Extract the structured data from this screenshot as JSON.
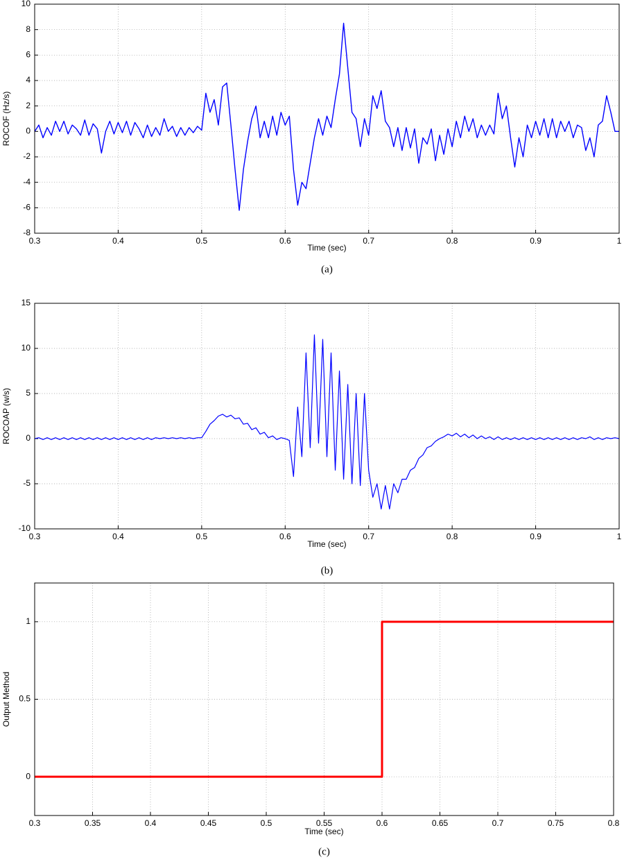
{
  "chart_data": [
    {
      "type": "line",
      "x_label": "Time (sec)",
      "y_label": "ROCOF (Hz/s)",
      "caption": "(a)",
      "x": [
        0.3,
        0.305,
        0.31,
        0.315,
        0.32,
        0.325,
        0.33,
        0.335,
        0.34,
        0.345,
        0.35,
        0.355,
        0.36,
        0.365,
        0.37,
        0.375,
        0.38,
        0.385,
        0.39,
        0.395,
        0.4,
        0.405,
        0.41,
        0.415,
        0.42,
        0.425,
        0.43,
        0.435,
        0.44,
        0.445,
        0.45,
        0.455,
        0.46,
        0.465,
        0.47,
        0.475,
        0.48,
        0.485,
        0.49,
        0.495,
        0.5,
        0.505,
        0.51,
        0.515,
        0.52,
        0.525,
        0.53,
        0.535,
        0.54,
        0.545,
        0.55,
        0.555,
        0.56,
        0.565,
        0.57,
        0.575,
        0.58,
        0.585,
        0.59,
        0.595,
        0.6,
        0.605,
        0.61,
        0.615,
        0.62,
        0.625,
        0.63,
        0.635,
        0.64,
        0.645,
        0.65,
        0.655,
        0.66,
        0.665,
        0.67,
        0.675,
        0.68,
        0.685,
        0.69,
        0.695,
        0.7,
        0.705,
        0.71,
        0.715,
        0.72,
        0.725,
        0.73,
        0.735,
        0.74,
        0.745,
        0.75,
        0.755,
        0.76,
        0.765,
        0.77,
        0.775,
        0.78,
        0.785,
        0.79,
        0.795,
        0.8,
        0.805,
        0.81,
        0.815,
        0.82,
        0.825,
        0.83,
        0.835,
        0.84,
        0.845,
        0.85,
        0.855,
        0.86,
        0.865,
        0.87,
        0.875,
        0.88,
        0.885,
        0.89,
        0.895,
        0.9,
        0.905,
        0.91,
        0.915,
        0.92,
        0.925,
        0.93,
        0.935,
        0.94,
        0.945,
        0.95,
        0.955,
        0.96,
        0.965,
        0.97,
        0.975,
        0.98,
        0.985,
        0.99,
        0.995,
        1.0
      ],
      "series": [
        {
          "color": "#0000ff",
          "values": [
            0,
            0.5,
            -0.5,
            0.3,
            -0.3,
            0.8,
            0,
            0.8,
            -0.2,
            0.5,
            0.2,
            -0.3,
            0.9,
            -0.3,
            0.6,
            0.2,
            -1.7,
            0,
            0.8,
            -0.2,
            0.7,
            -0.1,
            0.8,
            -0.3,
            0.7,
            0.2,
            -0.5,
            0.5,
            -0.4,
            0.3,
            -0.3,
            1.0,
            0,
            0.4,
            -0.4,
            0.3,
            -0.3,
            0.3,
            -0.1,
            0.4,
            0.1,
            3.0,
            1.5,
            2.5,
            0.5,
            3.5,
            3.8,
            0.5,
            -3,
            -6.2,
            -3,
            -0.8,
            1.0,
            2.0,
            -0.5,
            0.8,
            -0.5,
            1.2,
            -0.3,
            1.5,
            0.5,
            1.2,
            -3,
            -5.8,
            -4,
            -4.5,
            -2.5,
            -0.5,
            1.0,
            -0.3,
            1.2,
            0.3,
            2.5,
            4.5,
            8.5,
            5,
            1.5,
            1,
            -1.2,
            1.0,
            -0.3,
            2.8,
            1.8,
            3.2,
            0.8,
            0.3,
            -1.2,
            0.3,
            -1.5,
            0.3,
            -1.3,
            0.2,
            -2.5,
            -0.5,
            -1,
            0.2,
            -2.3,
            -0.3,
            -1.8,
            0.2,
            -1.2,
            0.8,
            -0.5,
            1.2,
            0,
            1.0,
            -0.5,
            0.5,
            -0.3,
            0.5,
            -0.2,
            3.0,
            1.0,
            2.0,
            -0.5,
            -2.8,
            -0.5,
            -2.0,
            0.5,
            -0.5,
            0.8,
            -0.3,
            1.0,
            -0.5,
            1.0,
            -0.5,
            0.8,
            0,
            0.8,
            -0.5,
            0.5,
            0.3,
            -1.5,
            -0.5,
            -2.0,
            0.5,
            0.8,
            2.8,
            1.5,
            0,
            0
          ]
        }
      ],
      "xlim": [
        0.3,
        1
      ],
      "xticks": [
        0.3,
        0.4,
        0.5,
        0.6,
        0.7,
        0.8,
        0.9,
        1
      ],
      "ylim": [
        -8,
        10
      ],
      "yticks": [
        -8,
        -6,
        -4,
        -2,
        0,
        2,
        4,
        6,
        8,
        10
      ],
      "grid": true
    },
    {
      "type": "line",
      "x_label": "Time (sec)",
      "y_label": "ROCOAP (w/s)",
      "caption": "(b)",
      "x": [
        0.3,
        0.305,
        0.31,
        0.315,
        0.32,
        0.325,
        0.33,
        0.335,
        0.34,
        0.345,
        0.35,
        0.355,
        0.36,
        0.365,
        0.37,
        0.375,
        0.38,
        0.385,
        0.39,
        0.395,
        0.4,
        0.405,
        0.41,
        0.415,
        0.42,
        0.425,
        0.43,
        0.435,
        0.44,
        0.445,
        0.45,
        0.455,
        0.46,
        0.465,
        0.47,
        0.475,
        0.48,
        0.485,
        0.49,
        0.495,
        0.5,
        0.505,
        0.51,
        0.515,
        0.52,
        0.525,
        0.53,
        0.535,
        0.54,
        0.545,
        0.55,
        0.555,
        0.56,
        0.565,
        0.57,
        0.575,
        0.58,
        0.585,
        0.59,
        0.595,
        0.6,
        0.605,
        0.61,
        0.615,
        0.62,
        0.625,
        0.63,
        0.635,
        0.64,
        0.645,
        0.65,
        0.655,
        0.66,
        0.665,
        0.67,
        0.675,
        0.68,
        0.685,
        0.69,
        0.695,
        0.7,
        0.705,
        0.71,
        0.715,
        0.72,
        0.725,
        0.73,
        0.735,
        0.74,
        0.745,
        0.75,
        0.755,
        0.76,
        0.765,
        0.77,
        0.775,
        0.78,
        0.785,
        0.79,
        0.795,
        0.8,
        0.805,
        0.81,
        0.815,
        0.82,
        0.825,
        0.83,
        0.835,
        0.84,
        0.845,
        0.85,
        0.855,
        0.86,
        0.865,
        0.87,
        0.875,
        0.88,
        0.885,
        0.89,
        0.895,
        0.9,
        0.905,
        0.91,
        0.915,
        0.92,
        0.925,
        0.93,
        0.935,
        0.94,
        0.945,
        0.95,
        0.955,
        0.96,
        0.965,
        0.97,
        0.975,
        0.98,
        0.985,
        0.99,
        0.995,
        1.0
      ],
      "series": [
        {
          "color": "#0000ff",
          "values": [
            0,
            0.1,
            -0.1,
            0.1,
            -0.1,
            0.1,
            -0.1,
            0.1,
            -0.1,
            0.1,
            -0.1,
            0.1,
            -0.1,
            0.1,
            -0.1,
            0.1,
            -0.1,
            0.1,
            -0.1,
            0.1,
            -0.1,
            0.1,
            -0.1,
            0.1,
            -0.1,
            0.1,
            -0.1,
            0.1,
            -0.1,
            0.1,
            0,
            0.1,
            0,
            0.1,
            0,
            0.1,
            0,
            0.1,
            0,
            0.1,
            0.1,
            0.8,
            1.6,
            2.0,
            2.5,
            2.7,
            2.4,
            2.6,
            2.2,
            2.3,
            1.6,
            1.7,
            1.0,
            1.2,
            0.5,
            0.7,
            0.1,
            0.3,
            -0.1,
            0.1,
            0,
            -0.2,
            -4.2,
            3.5,
            -2,
            9.5,
            -1,
            11.5,
            -0.5,
            11.0,
            -2,
            9.5,
            -3.5,
            7.5,
            -4.5,
            6,
            -5,
            5,
            -5.2,
            5.0,
            -3.5,
            -6.5,
            -5.0,
            -7.8,
            -5.2,
            -7.8,
            -5.0,
            -6.0,
            -4.5,
            -4.5,
            -3.5,
            -3.2,
            -2.2,
            -1.8,
            -1.0,
            -0.8,
            -0.3,
            0,
            0.2,
            0.5,
            0.3,
            0.6,
            0.2,
            0.5,
            0.1,
            0.4,
            0,
            0.3,
            0,
            0.2,
            -0.1,
            0.2,
            -0.1,
            0.1,
            -0.1,
            0.1,
            -0.1,
            0.1,
            -0.1,
            0.1,
            -0.1,
            0.1,
            -0.1,
            0.1,
            -0.1,
            0.1,
            -0.1,
            0.1,
            -0.1,
            0.1,
            -0.1,
            0.1,
            0,
            0.2,
            -0.1,
            0.1,
            -0.1,
            0.1,
            0,
            0.1,
            0
          ]
        }
      ],
      "xlim": [
        0.3,
        1
      ],
      "xticks": [
        0.3,
        0.4,
        0.5,
        0.6,
        0.7,
        0.8,
        0.9,
        1
      ],
      "ylim": [
        -10,
        15
      ],
      "yticks": [
        -10,
        -5,
        0,
        5,
        10,
        15
      ],
      "grid": true
    },
    {
      "type": "line",
      "x_label": "Time (sec)",
      "y_label": "Output Method",
      "caption": "(c)",
      "x": [
        0.3,
        0.6,
        0.6,
        0.8
      ],
      "series": [
        {
          "color": "#ff0000",
          "values": [
            0,
            0,
            1,
            1
          ]
        }
      ],
      "xlim": [
        0.3,
        0.8
      ],
      "xticks": [
        0.3,
        0.35,
        0.4,
        0.45,
        0.5,
        0.55,
        0.6,
        0.65,
        0.7,
        0.75,
        0.8
      ],
      "ylim": [
        -0.25,
        1.25
      ],
      "yticks": [
        0,
        0.5,
        1
      ],
      "grid": true
    }
  ]
}
